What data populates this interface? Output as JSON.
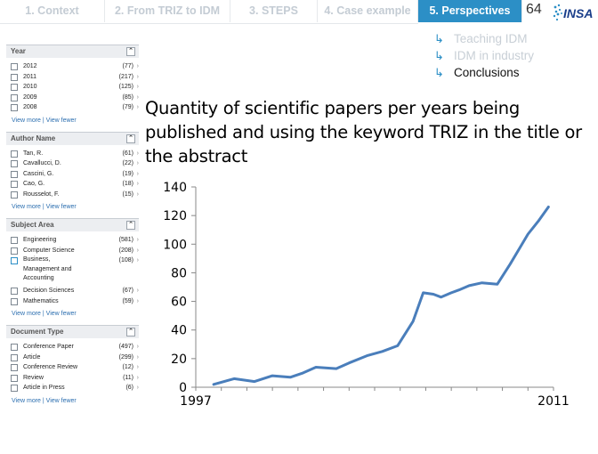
{
  "nav": {
    "tabs": [
      {
        "label": "1. Context"
      },
      {
        "label": "2. From TRIZ to IDM"
      },
      {
        "label": "3. STEPS"
      },
      {
        "label": "4. Case example"
      },
      {
        "label": "5. Perspectives"
      }
    ],
    "slide_number": "64",
    "logo_text": "INSA",
    "accent_color": "#2c8fc6"
  },
  "submenu": {
    "items": [
      {
        "label": "Teaching IDM"
      },
      {
        "label": "IDM in industry"
      },
      {
        "label": "Conclusions"
      }
    ]
  },
  "sidebar": {
    "panels": [
      {
        "title": "Year",
        "rows": [
          {
            "label": "2012",
            "count": "(77)"
          },
          {
            "label": "2011",
            "count": "(217)"
          },
          {
            "label": "2010",
            "count": "(125)"
          },
          {
            "label": "2009",
            "count": "(85)"
          },
          {
            "label": "2008",
            "count": "(79)"
          }
        ],
        "more": "View more | View fewer"
      },
      {
        "title": "Author Name",
        "rows": [
          {
            "label": "Tan, R.",
            "count": "(61)"
          },
          {
            "label": "Cavallucci, D.",
            "count": "(22)"
          },
          {
            "label": "Cascini, G.",
            "count": "(19)"
          },
          {
            "label": "Cao, G.",
            "count": "(18)"
          },
          {
            "label": "Rousselot, F.",
            "count": "(15)"
          }
        ],
        "more": "View more | View fewer"
      },
      {
        "title": "Subject Area",
        "rows": [
          {
            "label": "Engineering",
            "count": "(581)"
          },
          {
            "label": "Computer Science",
            "count": "(208)"
          },
          {
            "label": "Business, Management and Accounting",
            "count": "(108)"
          },
          {
            "label": "Decision Sciences",
            "count": "(67)"
          },
          {
            "label": "Mathematics",
            "count": "(59)"
          }
        ],
        "more": "View more | View fewer"
      },
      {
        "title": "Document Type",
        "rows": [
          {
            "label": "Conference Paper",
            "count": "(497)"
          },
          {
            "label": "Article",
            "count": "(299)"
          },
          {
            "label": "Conference Review",
            "count": "(12)"
          },
          {
            "label": "Review",
            "count": "(11)"
          },
          {
            "label": "Article in Press",
            "count": "(6)"
          }
        ],
        "more": "View more | View fewer"
      }
    ]
  },
  "main": {
    "title": "Quantity of scientific papers per years being published and using the keyword TRIZ in the title or the abstract"
  },
  "chart_data": {
    "type": "line",
    "title": "",
    "xlabel": "",
    "ylabel": "",
    "x_tick_labels": [
      "1997",
      "2011"
    ],
    "y_ticks": [
      0,
      20,
      40,
      60,
      80,
      100,
      120,
      140
    ],
    "ylim": [
      0,
      140
    ],
    "xlim": [
      1997,
      2011
    ],
    "grid": false,
    "line_color": "#4a7ebb",
    "series": [
      {
        "name": "",
        "x": [
          1997.7,
          1998.5,
          1999.3,
          2000.0,
          2000.7,
          2001.2,
          2001.7,
          2002.5,
          2003.0,
          2003.7,
          2004.3,
          2004.9,
          2005.5,
          2005.9,
          2006.3,
          2006.6,
          2007.0,
          2007.3,
          2007.7,
          2008.2,
          2008.8,
          2009.3,
          2009.7,
          2010.0,
          2010.4,
          2010.8
        ],
        "y": [
          2,
          6,
          4,
          8,
          7,
          10,
          14,
          13,
          17,
          22,
          25,
          29,
          46,
          66,
          65,
          63,
          66,
          68,
          71,
          73,
          72,
          86,
          98,
          107,
          116,
          126
        ]
      }
    ]
  }
}
